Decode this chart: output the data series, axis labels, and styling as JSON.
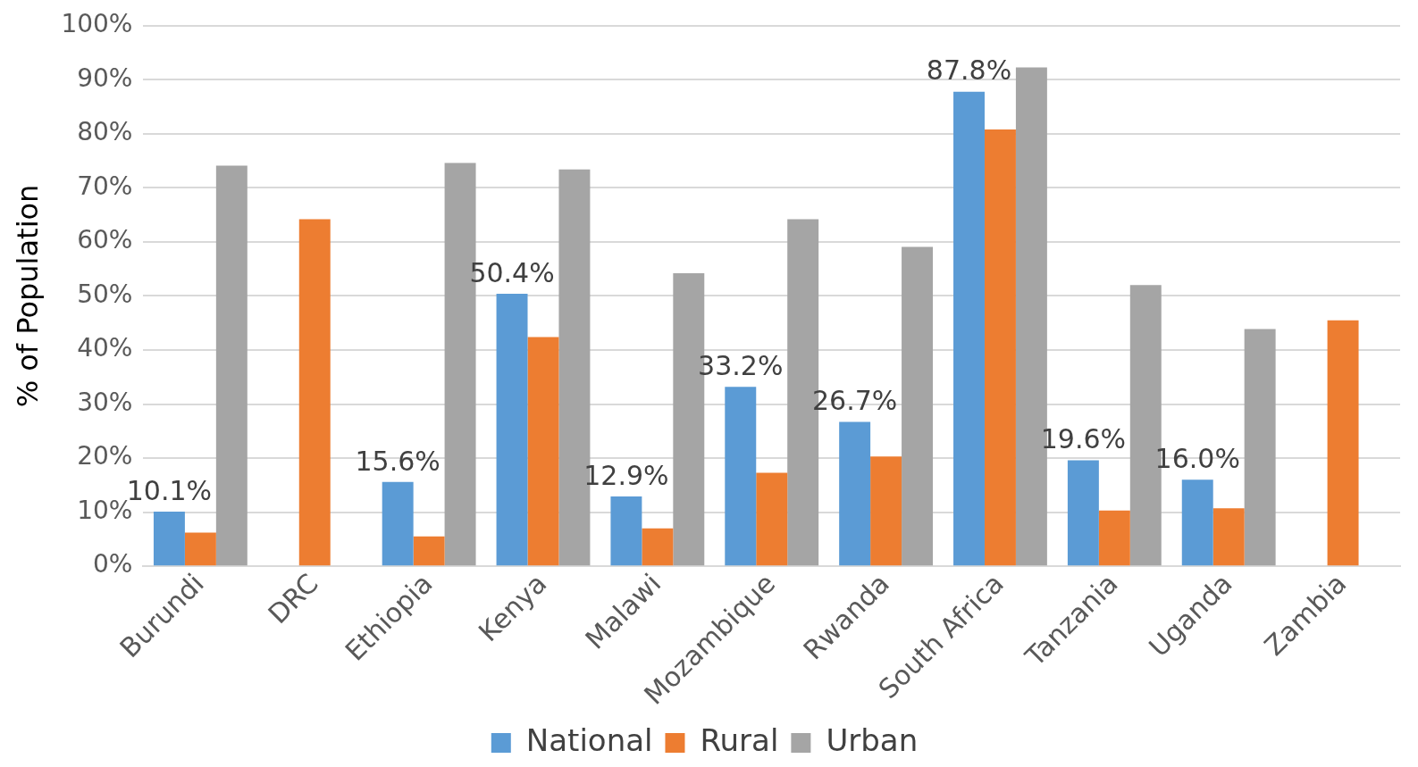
{
  "chart_data": {
    "type": "bar",
    "ylabel": "% of Population",
    "categories": [
      "Burundi",
      "DRC",
      "Ethiopia",
      "Kenya",
      "Malawi",
      "Mozambique",
      "Rwanda",
      "South Africa",
      "Tanzania",
      "Uganda",
      "Zambia"
    ],
    "series": [
      {
        "name": "National",
        "color": "#5b9bd5",
        "values": [
          10.1,
          null,
          15.6,
          50.4,
          12.9,
          33.2,
          26.7,
          87.8,
          19.6,
          16.0,
          null
        ],
        "value_labels": [
          "10.1%",
          null,
          "15.6%",
          "50.4%",
          "12.9%",
          "33.2%",
          "26.7%",
          "87.8%",
          "19.6%",
          "16.0%",
          null
        ]
      },
      {
        "name": "Rural",
        "color": "#ed7d31",
        "values": [
          6.2,
          64.2,
          5.5,
          42.4,
          7.0,
          17.3,
          20.3,
          80.8,
          10.3,
          10.7,
          45.5
        ]
      },
      {
        "name": "Urban",
        "color": "#a5a5a5",
        "values": [
          74.1,
          null,
          74.6,
          73.4,
          54.2,
          64.2,
          59.1,
          92.3,
          52.0,
          43.9,
          null
        ]
      }
    ],
    "ylim": [
      0,
      100
    ],
    "yticks": [
      {
        "value": 0,
        "label": "0%"
      },
      {
        "value": 10,
        "label": "10%"
      },
      {
        "value": 20,
        "label": "20%"
      },
      {
        "value": 30,
        "label": "30%"
      },
      {
        "value": 40,
        "label": "40%"
      },
      {
        "value": 50,
        "label": "50%"
      },
      {
        "value": 60,
        "label": "60%"
      },
      {
        "value": 70,
        "label": "70%"
      },
      {
        "value": 80,
        "label": "80%"
      },
      {
        "value": 90,
        "label": "90%"
      },
      {
        "value": 100,
        "label": "100%"
      }
    ],
    "grid": "y",
    "legend": "bottom"
  }
}
